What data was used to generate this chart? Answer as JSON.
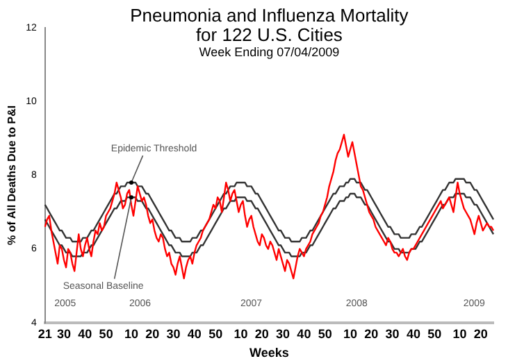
{
  "chart_data": {
    "type": "line",
    "title": "Pneumonia and Influenza Mortality\nfor 122 U.S. Cities",
    "subtitle": "Week Ending 07/04/2009",
    "xlabel": "Weeks",
    "ylabel": "% of All Deaths Due to P&I",
    "categories": [
      "21",
      null,
      null,
      null,
      null,
      null,
      null,
      null,
      null,
      "30",
      null,
      null,
      null,
      null,
      null,
      null,
      null,
      null,
      null,
      "40",
      null,
      null,
      null,
      null,
      null,
      null,
      null,
      null,
      null,
      "50",
      null,
      null,
      null,
      null,
      null,
      null,
      null,
      null,
      null,
      null,
      null,
      "10",
      null,
      null,
      null,
      null,
      null,
      null,
      null,
      null,
      null,
      "20",
      null,
      null,
      null,
      null,
      null,
      null,
      null,
      null,
      null,
      "30",
      null,
      null,
      null,
      null,
      null,
      null,
      null,
      null,
      null,
      "40",
      null,
      null,
      null,
      null,
      null,
      null,
      null,
      null,
      null,
      "50",
      null,
      null,
      null,
      null,
      null,
      null,
      null,
      null,
      null,
      null,
      null,
      "10",
      null,
      null,
      null,
      null,
      null,
      null,
      null,
      null,
      null,
      "20",
      null,
      null,
      null,
      null,
      null,
      null,
      null,
      null,
      null,
      "30",
      null,
      null,
      null,
      null,
      null,
      null,
      null,
      null,
      null,
      "40",
      null,
      null,
      null,
      null,
      null,
      null,
      null,
      null,
      null,
      "50",
      null,
      null,
      null,
      null,
      null,
      null,
      null,
      null,
      null,
      null,
      null,
      "10",
      null,
      null,
      null,
      null,
      null,
      null,
      null,
      null,
      null,
      "20",
      null,
      null,
      null,
      null,
      null,
      null,
      null,
      null,
      null,
      "30",
      null,
      null,
      null,
      null,
      null,
      null,
      null,
      null,
      null,
      "40",
      null,
      null,
      null,
      null,
      null,
      null,
      null,
      null,
      null,
      "50",
      null,
      null,
      null,
      null,
      null,
      null,
      null,
      null,
      null,
      null,
      null,
      "10",
      null,
      null,
      null,
      null,
      null,
      null,
      null,
      null,
      null,
      "20",
      null,
      null,
      null,
      null,
      null,
      null
    ],
    "ylim": [
      4,
      12
    ],
    "yticks": [
      4,
      6,
      8,
      10,
      12
    ],
    "grid": false,
    "legend": false,
    "marker": "none",
    "line_style": "solid",
    "series": [
      {
        "color": "#ff0000",
        "values": [
          6.6,
          6.8,
          6.9,
          6.5,
          6.2,
          5.9,
          5.6,
          6.1,
          6.0,
          5.7,
          5.5,
          6.0,
          5.9,
          5.6,
          5.4,
          5.9,
          6.4,
          6.0,
          5.8,
          6.1,
          6.3,
          6.0,
          5.8,
          6.2,
          6.5,
          6.4,
          6.7,
          6.5,
          6.6,
          6.9,
          7.0,
          7.1,
          7.3,
          7.5,
          7.8,
          7.6,
          7.4,
          7.1,
          7.2,
          7.5,
          7.6,
          7.2,
          6.9,
          7.3,
          7.7,
          7.5,
          7.3,
          7.4,
          7.2,
          6.9,
          6.7,
          6.8,
          6.5,
          6.3,
          6.2,
          6.4,
          6.3,
          6.0,
          5.8,
          5.9,
          5.6,
          5.5,
          5.3,
          5.6,
          5.8,
          5.5,
          5.2,
          5.5,
          5.7,
          5.8,
          5.6,
          5.9,
          6.1,
          6.2,
          6.3,
          6.5,
          6.6,
          6.7,
          6.8,
          7.0,
          7.2,
          7.1,
          7.4,
          7.3,
          7.0,
          7.4,
          7.8,
          7.6,
          7.3,
          7.5,
          7.6,
          7.3,
          7.0,
          7.2,
          7.3,
          6.9,
          6.6,
          6.8,
          6.9,
          6.6,
          6.4,
          6.2,
          6.1,
          6.4,
          6.3,
          6.1,
          6.0,
          6.2,
          6.1,
          5.9,
          5.7,
          6.0,
          5.8,
          5.6,
          5.4,
          5.7,
          5.6,
          5.4,
          5.2,
          5.5,
          5.8,
          6.0,
          5.9,
          5.8,
          6.0,
          6.1,
          6.2,
          6.4,
          6.5,
          6.6,
          6.7,
          6.9,
          7.0,
          7.2,
          7.4,
          7.7,
          7.9,
          8.1,
          8.4,
          8.6,
          8.7,
          8.9,
          9.1,
          8.8,
          8.5,
          8.7,
          8.9,
          8.6,
          8.3,
          8.0,
          7.7,
          7.6,
          7.4,
          7.2,
          7.0,
          6.9,
          6.8,
          6.6,
          6.5,
          6.4,
          6.3,
          6.2,
          6.1,
          6.3,
          6.2,
          6.0,
          5.9,
          5.9,
          5.8,
          5.9,
          6.0,
          5.8,
          5.7,
          5.9,
          6.0,
          6.0,
          6.1,
          6.2,
          6.3,
          6.4,
          6.5,
          6.6,
          6.7,
          6.8,
          6.9,
          7.0,
          7.1,
          7.2,
          7.3,
          7.1,
          7.2,
          7.3,
          7.4,
          7.2,
          7.0,
          7.4,
          7.8,
          7.5,
          7.3,
          7.1,
          7.0,
          6.9,
          6.8,
          6.6,
          6.4,
          6.7,
          6.9,
          6.7,
          6.5,
          6.6,
          6.7,
          6.6,
          6.6,
          6.5
        ]
      },
      {
        "color": "#333333",
        "values": [
          7.2,
          7.1,
          7.0,
          6.9,
          6.8,
          6.7,
          6.6,
          6.5,
          6.5,
          6.4,
          6.3,
          6.3,
          6.3,
          6.2,
          6.2,
          6.2,
          6.2,
          6.2,
          6.3,
          6.3,
          6.3,
          6.4,
          6.5,
          6.5,
          6.6,
          6.7,
          6.8,
          6.9,
          7.0,
          7.1,
          7.2,
          7.3,
          7.4,
          7.5,
          7.5,
          7.6,
          7.7,
          7.7,
          7.7,
          7.8,
          7.8,
          7.8,
          7.8,
          7.8,
          7.7,
          7.7,
          7.7,
          7.6,
          7.5,
          7.5,
          7.4,
          7.3,
          7.2,
          7.1,
          7.0,
          6.9,
          6.8,
          6.7,
          6.6,
          6.5,
          6.5,
          6.4,
          6.3,
          6.3,
          6.3,
          6.2,
          6.2,
          6.2,
          6.2,
          6.2,
          6.3,
          6.3,
          6.3,
          6.4,
          6.5,
          6.5,
          6.6,
          6.7,
          6.8,
          6.9,
          7.0,
          7.1,
          7.2,
          7.3,
          7.4,
          7.5,
          7.5,
          7.6,
          7.7,
          7.7,
          7.7,
          7.8,
          7.8,
          7.8,
          7.8,
          7.8,
          7.7,
          7.7,
          7.7,
          7.6,
          7.5,
          7.5,
          7.4,
          7.3,
          7.2,
          7.1,
          7.0,
          6.9,
          6.8,
          6.7,
          6.6,
          6.5,
          6.5,
          6.4,
          6.3,
          6.3,
          6.3,
          6.2,
          6.2,
          6.2,
          6.2,
          6.2,
          6.3,
          6.3,
          6.3,
          6.4,
          6.5,
          6.5,
          6.6,
          6.7,
          6.8,
          6.9,
          7.0,
          7.1,
          7.2,
          7.3,
          7.4,
          7.5,
          7.5,
          7.6,
          7.7,
          7.7,
          7.7,
          7.8,
          7.8,
          7.9,
          7.9,
          7.9,
          7.8,
          7.8,
          7.8,
          7.7,
          7.6,
          7.6,
          7.5,
          7.4,
          7.3,
          7.2,
          7.1,
          7.0,
          6.9,
          6.8,
          6.7,
          6.6,
          6.6,
          6.5,
          6.4,
          6.4,
          6.4,
          6.3,
          6.3,
          6.3,
          6.3,
          6.3,
          6.4,
          6.4,
          6.4,
          6.5,
          6.6,
          6.6,
          6.7,
          6.8,
          6.9,
          7.0,
          7.1,
          7.2,
          7.3,
          7.4,
          7.5,
          7.6,
          7.6,
          7.7,
          7.8,
          7.8,
          7.8,
          7.9,
          7.9,
          7.9,
          7.9,
          7.9,
          7.8,
          7.8,
          7.8,
          7.7,
          7.6,
          7.6,
          7.5,
          7.4,
          7.3,
          7.2,
          7.1,
          7.0,
          6.9,
          6.8
        ]
      },
      {
        "color": "#333333",
        "values": [
          6.8,
          6.7,
          6.6,
          6.5,
          6.4,
          6.3,
          6.2,
          6.1,
          6.1,
          6.0,
          5.9,
          5.9,
          5.9,
          5.8,
          5.8,
          5.8,
          5.8,
          5.8,
          5.9,
          5.9,
          5.9,
          6.0,
          6.1,
          6.1,
          6.2,
          6.3,
          6.4,
          6.5,
          6.6,
          6.7,
          6.8,
          6.9,
          7.0,
          7.1,
          7.1,
          7.2,
          7.3,
          7.3,
          7.3,
          7.4,
          7.4,
          7.4,
          7.4,
          7.4,
          7.3,
          7.3,
          7.3,
          7.2,
          7.1,
          7.1,
          7.0,
          6.9,
          6.8,
          6.7,
          6.6,
          6.5,
          6.4,
          6.3,
          6.2,
          6.1,
          6.1,
          6.0,
          5.9,
          5.9,
          5.9,
          5.8,
          5.8,
          5.8,
          5.8,
          5.8,
          5.9,
          5.9,
          5.9,
          6.0,
          6.1,
          6.1,
          6.2,
          6.3,
          6.4,
          6.5,
          6.6,
          6.7,
          6.8,
          6.9,
          7.0,
          7.1,
          7.1,
          7.2,
          7.3,
          7.3,
          7.3,
          7.4,
          7.4,
          7.4,
          7.4,
          7.4,
          7.3,
          7.3,
          7.3,
          7.2,
          7.1,
          7.1,
          7.0,
          6.9,
          6.8,
          6.7,
          6.6,
          6.5,
          6.4,
          6.3,
          6.2,
          6.1,
          6.1,
          6.0,
          5.9,
          5.9,
          5.9,
          5.8,
          5.8,
          5.8,
          5.8,
          5.8,
          5.9,
          5.9,
          5.9,
          6.0,
          6.1,
          6.1,
          6.2,
          6.3,
          6.4,
          6.5,
          6.6,
          6.7,
          6.8,
          6.9,
          7.0,
          7.1,
          7.1,
          7.2,
          7.3,
          7.3,
          7.3,
          7.4,
          7.4,
          7.5,
          7.5,
          7.5,
          7.4,
          7.4,
          7.4,
          7.3,
          7.2,
          7.2,
          7.1,
          7.0,
          6.9,
          6.8,
          6.7,
          6.6,
          6.5,
          6.4,
          6.3,
          6.2,
          6.2,
          6.1,
          6.0,
          6.0,
          6.0,
          5.9,
          5.9,
          5.9,
          5.9,
          5.9,
          6.0,
          6.0,
          6.0,
          6.1,
          6.2,
          6.2,
          6.3,
          6.4,
          6.5,
          6.6,
          6.7,
          6.8,
          6.9,
          7.0,
          7.1,
          7.2,
          7.2,
          7.3,
          7.4,
          7.4,
          7.4,
          7.5,
          7.5,
          7.5,
          7.5,
          7.5,
          7.4,
          7.4,
          7.4,
          7.3,
          7.2,
          7.2,
          7.1,
          7.0,
          6.9,
          6.8,
          6.7,
          6.6,
          6.5,
          6.4
        ]
      }
    ],
    "annotations": [
      {
        "text": "Epidemic Threshold",
        "x": "10",
        "y": 7.8
      },
      {
        "text": "Seasonal Baseline",
        "x": "10",
        "y": 7.4
      },
      "2005",
      "2006",
      "2007",
      "2008",
      "2009"
    ]
  }
}
